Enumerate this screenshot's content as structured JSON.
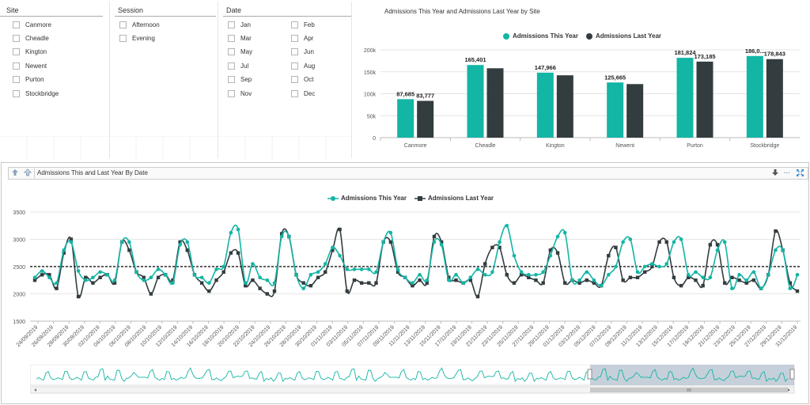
{
  "filters": {
    "site": {
      "title": "Site",
      "items": [
        "Canmore",
        "Cheadle",
        "Kington",
        "Newent",
        "Purton",
        "Stockbridge"
      ]
    },
    "session": {
      "title": "Session",
      "items": [
        "Afternoon",
        "Evening"
      ]
    },
    "date": {
      "title": "Date",
      "items": [
        "Jan",
        "Feb",
        "Mar",
        "Apr",
        "May",
        "Jun",
        "Jul",
        "Aug",
        "Sep",
        "Oct",
        "Nov",
        "Dec"
      ]
    }
  },
  "top_chart": {
    "title": "Admissions This Year and Admissions Last Year by Site",
    "legend": [
      "Admissions This Year",
      "Admissions Last Year"
    ]
  },
  "bottom_panel": {
    "header_title": "Admissions This and Last Year By Date",
    "icons": [
      "arrow-up-icon",
      "hierarchy-icon",
      "arrow-down-icon",
      "more-icon",
      "expand-icon"
    ],
    "more_label": "···",
    "legend": [
      "Admissions This Year",
      "Admissions Last Year"
    ]
  },
  "colors": {
    "this_year": "#13b5a5",
    "last_year": "#333c3f",
    "average_line": "#000000",
    "navigator_fill": "#b8c4d2"
  },
  "chart_data": [
    {
      "type": "bar",
      "title": "Admissions This Year and Admissions Last Year by Site",
      "categories": [
        "Canmore",
        "Cheadle",
        "Kington",
        "Newent",
        "Purton",
        "Stockbridge"
      ],
      "series": [
        {
          "name": "Admissions This Year",
          "values": [
            87685,
            165401,
            147966,
            125665,
            181824,
            186000
          ]
        },
        {
          "name": "Admissions Last Year",
          "values": [
            83777,
            158000,
            142000,
            122000,
            173185,
            178843
          ]
        }
      ],
      "data_labels": [
        [
          "87,685",
          "165,401",
          "147,966",
          "125,665",
          "181,824",
          "186,0..."
        ],
        [
          "83,777",
          "",
          "",
          "",
          "173,185",
          "178,843"
        ]
      ],
      "ylim": [
        0,
        200000
      ],
      "yticks": [
        "0",
        "50k",
        "100k",
        "150k",
        "200k"
      ],
      "legend_position": "top",
      "grid": true
    },
    {
      "type": "line",
      "title": "Admissions This and Last Year By Date",
      "x_start": "24/09/2019",
      "x_end": "01/01/2020",
      "xticks": [
        "24/09/2019",
        "26/09/2019",
        "28/09/2019",
        "30/09/2019",
        "02/10/2019",
        "04/10/2019",
        "06/10/2019",
        "08/10/2019",
        "10/10/2019",
        "12/10/2019",
        "14/10/2019",
        "16/10/2019",
        "18/10/2019",
        "20/10/2019",
        "22/10/2019",
        "24/10/2019",
        "26/10/2019",
        "28/10/2019",
        "30/10/2019",
        "01/11/2019",
        "03/11/2019",
        "05/11/2019",
        "07/11/2019",
        "09/11/2019",
        "11/11/2019",
        "13/11/2019",
        "15/11/2019",
        "17/11/2019",
        "19/11/2019",
        "21/11/2019",
        "23/11/2019",
        "25/11/2019",
        "27/11/2019",
        "29/11/2019",
        "01/12/2019",
        "03/12/2019",
        "05/12/2019",
        "07/12/2019",
        "09/12/2019",
        "11/12/2019",
        "13/12/2019",
        "15/12/2019",
        "17/12/2019",
        "19/12/2019",
        "21/12/2019",
        "23/12/2019",
        "25/12/2019",
        "27/12/2019",
        "29/12/2019",
        "31/12/2019"
      ],
      "yticks": [
        "1500",
        "2000",
        "2500",
        "3000",
        "3500"
      ],
      "ylim": [
        1500,
        3500
      ],
      "series": [
        {
          "name": "Admissions This Year",
          "values": [
            2300,
            2420,
            2300,
            2200,
            2800,
            2950,
            2420,
            2250,
            2300,
            2400,
            2350,
            2250,
            2950,
            2950,
            2400,
            2250,
            2300,
            2450,
            2350,
            2200,
            2900,
            2950,
            2350,
            2300,
            2200,
            2450,
            2500,
            3120,
            3180,
            2200,
            2550,
            2300,
            2250,
            2200,
            3050,
            3050,
            2350,
            2100,
            2350,
            2400,
            2550,
            2850,
            2700,
            2450,
            2450,
            2450,
            2450,
            2400,
            2950,
            3120,
            2450,
            2300,
            2200,
            2350,
            2250,
            2950,
            2900,
            2250,
            2350,
            2200,
            2300,
            2450,
            2350,
            2400,
            2950,
            3250,
            2700,
            2400,
            2350,
            2350,
            2400,
            2700,
            3050,
            3120,
            2250,
            2250,
            2400,
            2250,
            2150,
            2350,
            2500,
            2950,
            3000,
            2400,
            2500,
            2550,
            2500,
            2550,
            2950,
            3000,
            2350,
            2400,
            2300,
            2300,
            2800,
            2950,
            2100,
            2350,
            2250,
            2400,
            2100,
            2350,
            2800,
            2800,
            2100,
            2350
          ]
        },
        {
          "name": "Admissions Last Year",
          "values": [
            2250,
            2350,
            2350,
            2100,
            2750,
            3000,
            1950,
            2300,
            2200,
            2300,
            2350,
            2200,
            2950,
            2800,
            2400,
            2300,
            2000,
            2300,
            2350,
            2250,
            2950,
            2800,
            2350,
            2200,
            2050,
            2250,
            2400,
            2750,
            2750,
            2150,
            2250,
            2100,
            2000,
            2050,
            3100,
            3050,
            2350,
            2200,
            2150,
            2300,
            2400,
            2800,
            3180,
            2050,
            2250,
            2200,
            2200,
            2200,
            2950,
            2950,
            2400,
            2300,
            2150,
            2250,
            2200,
            3050,
            2950,
            2300,
            2250,
            2200,
            2250,
            1950,
            2550,
            2850,
            2850,
            2350,
            2200,
            2350,
            2300,
            2250,
            2200,
            2800,
            2750,
            2200,
            2250,
            2200,
            2250,
            2200,
            2150,
            2700,
            2850,
            2250,
            2300,
            2300,
            2400,
            2500,
            2950,
            2950,
            2300,
            2150,
            2300,
            2250,
            2150,
            2900,
            2900,
            2200,
            2300,
            2250,
            2200,
            2250,
            2100,
            2350,
            3150,
            2800,
            2200,
            2050
          ]
        }
      ],
      "average_line": 2500,
      "legend_position": "top",
      "grid": true
    }
  ]
}
